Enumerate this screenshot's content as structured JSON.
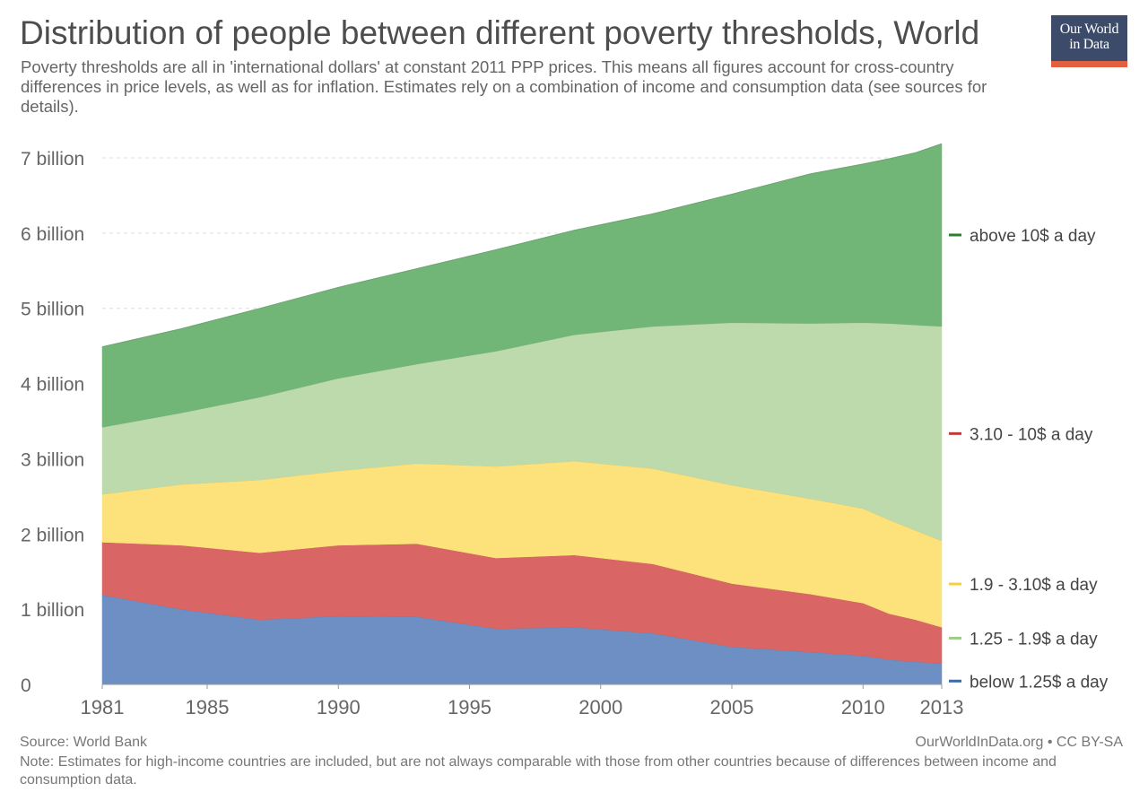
{
  "title": "Distribution of people between different poverty thresholds, World",
  "subtitle": "Poverty thresholds are all in 'international dollars' at constant 2011 PPP prices. This means all figures account for cross-country differences in price levels, as well as for inflation. Estimates rely on a combination of income and consumption data (see sources for details).",
  "logo": {
    "line1": "Our World",
    "line2": "in Data"
  },
  "footer": {
    "source": "Source: World Bank",
    "credit": "OurWorldInData.org • CC BY-SA",
    "note": "Note: Estimates for high-income countries are included, but are not always comparable with those from other countries because of differences between income and consumption data."
  },
  "chart_data": {
    "type": "area",
    "stacked": true,
    "title": "Distribution of people between different poverty thresholds, World",
    "xlabel": "",
    "ylabel": "",
    "xlim": [
      1981,
      2013
    ],
    "ylim": [
      0,
      7.2
    ],
    "y_unit": "billion",
    "y_ticks": [
      0,
      1,
      2,
      3,
      4,
      5,
      6,
      7
    ],
    "y_tick_labels": [
      "0",
      "1 billion",
      "2 billion",
      "3 billion",
      "4 billion",
      "5 billion",
      "6 billion",
      "7 billion"
    ],
    "x_ticks": [
      1981,
      1985,
      1990,
      1995,
      2000,
      2005,
      2010,
      2013
    ],
    "x_tick_labels": [
      "1981",
      "1985",
      "1990",
      "1995",
      "2000",
      "2005",
      "2010",
      "2013"
    ],
    "grid": "horizontal dashed",
    "legend_placement": "right, inline labels",
    "x": [
      1981,
      1984,
      1987,
      1990,
      1993,
      1996,
      1999,
      2002,
      2005,
      2008,
      2010,
      2011,
      2012,
      2013
    ],
    "series": [
      {
        "name": "below 1.25$ a day",
        "color": "#6d8fc4",
        "values": [
          1.19,
          1.0,
          0.86,
          0.91,
          0.9,
          0.74,
          0.76,
          0.68,
          0.5,
          0.43,
          0.38,
          0.33,
          0.3,
          0.28
        ]
      },
      {
        "name": "1.25 - 1.9$ a day",
        "color": "#d96665",
        "values": [
          0.7,
          0.85,
          0.89,
          0.94,
          0.97,
          0.94,
          0.96,
          0.92,
          0.84,
          0.77,
          0.7,
          0.61,
          0.56,
          0.48
        ]
      },
      {
        "name": "1.9 - 3.10$ a day",
        "color": "#fde17a",
        "values": [
          0.64,
          0.81,
          0.97,
          0.99,
          1.07,
          1.22,
          1.25,
          1.27,
          1.31,
          1.27,
          1.26,
          1.25,
          1.19,
          1.15
        ]
      },
      {
        "name": "3.10 - 10$ a day",
        "color": "#bcdaac",
        "values": [
          0.89,
          0.95,
          1.1,
          1.23,
          1.32,
          1.53,
          1.68,
          1.89,
          2.16,
          2.33,
          2.47,
          2.61,
          2.73,
          2.85
        ]
      },
      {
        "name": "above 10$ a day",
        "color": "#71b577",
        "values": [
          1.07,
          1.12,
          1.18,
          1.21,
          1.27,
          1.35,
          1.39,
          1.5,
          1.71,
          1.99,
          2.11,
          2.19,
          2.29,
          2.43
        ]
      }
    ],
    "legend_colors": [
      "#2e7d35",
      "#c0393b",
      "#f4d03f",
      "#9ccc86",
      "#3b6aa8"
    ]
  }
}
